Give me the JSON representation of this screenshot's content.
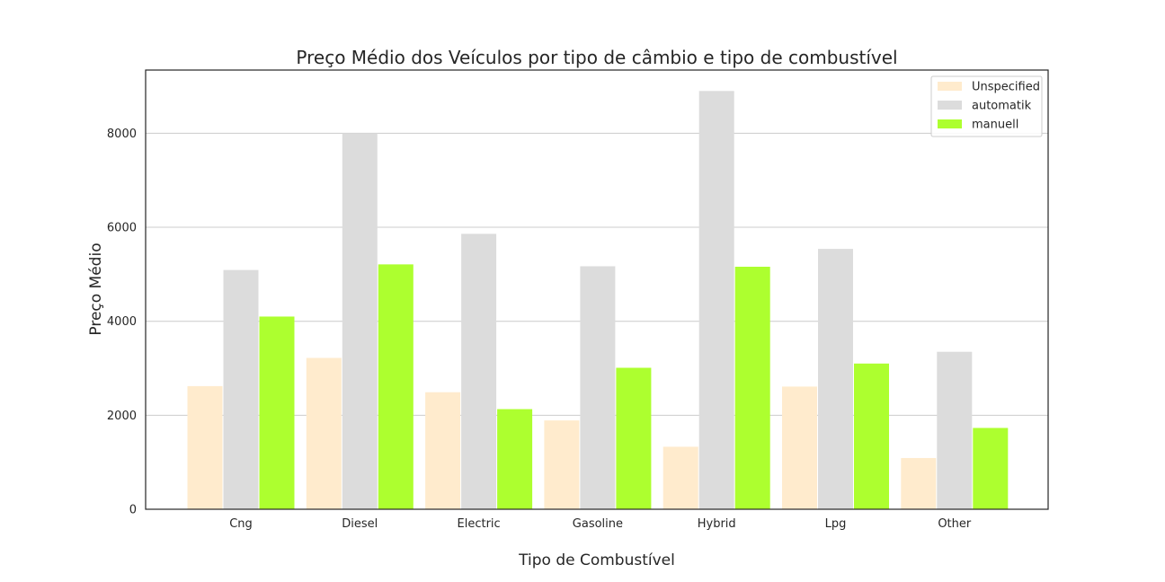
{
  "chart_data": {
    "type": "bar",
    "title": "Preço Médio dos Veículos por tipo de câmbio e tipo de combustível",
    "xlabel": "Tipo de Combustível",
    "ylabel": "Preço Médio",
    "categories": [
      "Cng",
      "Diesel",
      "Electric",
      "Gasoline",
      "Hybrid",
      "Lpg",
      "Other"
    ],
    "series": [
      {
        "name": "Unspecified",
        "color": "#ffebcd",
        "values": [
          2620,
          3220,
          2490,
          1890,
          1330,
          2610,
          1090
        ]
      },
      {
        "name": "automatik",
        "color": "#dcdcdc",
        "values": [
          5090,
          8000,
          5860,
          5170,
          8900,
          5540,
          3350
        ]
      },
      {
        "name": "manuell",
        "color": "#adff2f",
        "values": [
          4100,
          5210,
          2130,
          3010,
          5160,
          3100,
          1730
        ]
      }
    ],
    "yticks": [
      0,
      2000,
      4000,
      6000,
      8000
    ],
    "ylim": [
      0,
      9345
    ],
    "grid": "horizontal",
    "legend_position": "top-right"
  }
}
